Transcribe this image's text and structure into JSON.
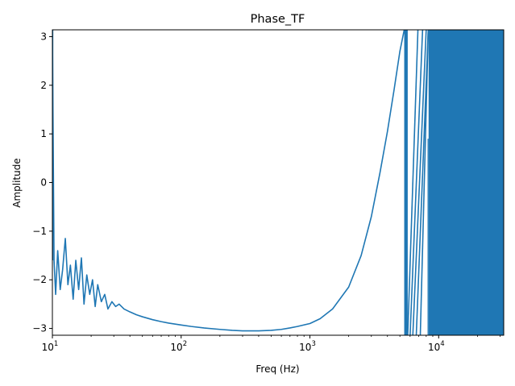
{
  "chart_data": {
    "type": "line",
    "title": "Phase_TF",
    "xlabel": "Freq (Hz)",
    "ylabel": "Amplitude",
    "xscale": "log",
    "xlim": [
      10,
      32000
    ],
    "ylim": [
      -3.14,
      3.14
    ],
    "grid": false,
    "line_color": "#1f77b4",
    "x_ticks": [
      {
        "value": 10,
        "base": "10",
        "exp": "1"
      },
      {
        "value": 100,
        "base": "10",
        "exp": "2"
      },
      {
        "value": 1000,
        "base": "10",
        "exp": "3"
      },
      {
        "value": 10000,
        "base": "10",
        "exp": "4"
      }
    ],
    "y_ticks": [
      {
        "value": 3,
        "label": "3"
      },
      {
        "value": 2,
        "label": "2"
      },
      {
        "value": 1,
        "label": "1"
      },
      {
        "value": 0,
        "label": "0"
      },
      {
        "value": -1,
        "label": "−1"
      },
      {
        "value": -2,
        "label": "−2"
      },
      {
        "value": -3,
        "label": "−3"
      }
    ],
    "series": [
      {
        "x": [
          10,
          10.3,
          10.6,
          11,
          11.5,
          12,
          12.6,
          13.2,
          13.8,
          14.5,
          15.2,
          16,
          16.8,
          17.6,
          18.5,
          19.5,
          20.5,
          21.5,
          22.5,
          24,
          25.5,
          27,
          29,
          31,
          33,
          36,
          40,
          45,
          50,
          60,
          70,
          80,
          100,
          120,
          150,
          200,
          250,
          300,
          400,
          500,
          600,
          700,
          800,
          1000,
          1200,
          1500,
          2000,
          2500,
          3000,
          3500,
          4000,
          4500,
          5000,
          5400
        ],
        "y": [
          3.1,
          -1.6,
          -2.3,
          -1.4,
          -2.2,
          -1.8,
          -1.15,
          -2.1,
          -1.7,
          -2.4,
          -1.6,
          -2.2,
          -1.55,
          -2.5,
          -1.9,
          -2.3,
          -2.0,
          -2.55,
          -2.1,
          -2.45,
          -2.3,
          -2.6,
          -2.45,
          -2.55,
          -2.5,
          -2.6,
          -2.66,
          -2.72,
          -2.76,
          -2.82,
          -2.86,
          -2.89,
          -2.93,
          -2.96,
          -2.99,
          -3.02,
          -3.04,
          -3.05,
          -3.05,
          -3.04,
          -3.02,
          -2.99,
          -2.96,
          -2.9,
          -2.8,
          -2.6,
          -2.15,
          -1.5,
          -0.7,
          0.2,
          1.05,
          1.9,
          2.7,
          3.14
        ]
      }
    ],
    "annotations": [
      "dense phase wrap band near 5400-5700 Hz spanning full range",
      "sloped wrap lines from 5700 to 8300 Hz",
      "solid wrapped region from 8300 Hz to upper limit spanning full range"
    ]
  }
}
